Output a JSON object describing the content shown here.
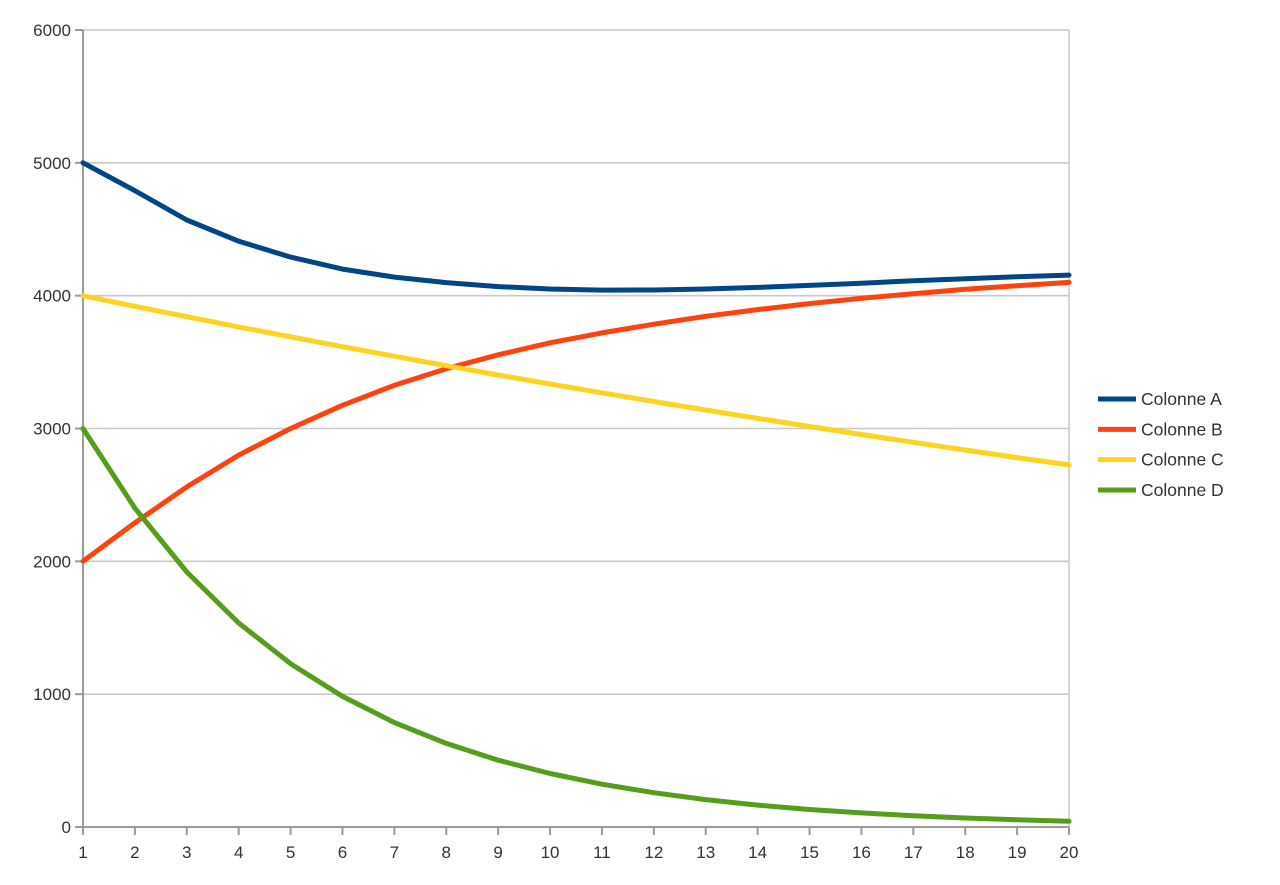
{
  "page": {
    "background": "#FFFFFF"
  },
  "colors": {
    "grid": "#C9C9C9",
    "axis": "#9B9B9B",
    "tick": "#9B9B9B",
    "label_text": "#333333",
    "legend_text": "#333333"
  },
  "chart_data": {
    "type": "line",
    "title": "",
    "xlabel": "",
    "ylabel": "",
    "grid": true,
    "legend_position": "right",
    "xlim": [
      1,
      20
    ],
    "ylim": [
      0,
      6000
    ],
    "x": [
      1,
      2,
      3,
      4,
      5,
      6,
      7,
      8,
      9,
      10,
      11,
      12,
      13,
      14,
      15,
      16,
      17,
      18,
      19,
      20
    ],
    "x_tick_labels": [
      "1",
      "2",
      "3",
      "4",
      "5",
      "6",
      "7",
      "8",
      "9",
      "10",
      "11",
      "12",
      "13",
      "14",
      "15",
      "16",
      "17",
      "18",
      "19",
      "20"
    ],
    "y_ticks": [
      0,
      1000,
      2000,
      3000,
      4000,
      5000,
      6000
    ],
    "y_tick_labels": [
      "0",
      "1000",
      "2000",
      "3000",
      "4000",
      "5000",
      "6000"
    ],
    "legend_entries": [
      "Colonne A",
      "Colonne B",
      "Colonne C",
      "Colonne D"
    ],
    "series": [
      {
        "name": "Colonne A",
        "color": "#004586",
        "values": [
          5000,
          4790,
          4570,
          4410,
          4290,
          4200,
          4140,
          4098,
          4068,
          4050,
          4042,
          4043,
          4050,
          4062,
          4077,
          4094,
          4112,
          4128,
          4142,
          4155
        ]
      },
      {
        "name": "Colonne B",
        "color": "#FF420E",
        "values": [
          2000,
          2290,
          2560,
          2800,
          3000,
          3175,
          3325,
          3450,
          3555,
          3645,
          3720,
          3785,
          3845,
          3895,
          3940,
          3980,
          4015,
          4048,
          4075,
          4100
        ]
      },
      {
        "name": "Colonne C",
        "color": "#FFD320",
        "values": [
          4000,
          3920,
          3842,
          3765,
          3690,
          3616,
          3544,
          3473,
          3403,
          3335,
          3269,
          3203,
          3139,
          3077,
          3015,
          2955,
          2896,
          2838,
          2781,
          2726
        ]
      },
      {
        "name": "Colonne D",
        "color": "#579D1C",
        "values": [
          3000,
          2400,
          1920,
          1536,
          1229,
          983,
          786,
          629,
          503,
          403,
          322,
          258,
          206,
          165,
          132,
          106,
          85,
          68,
          54,
          43
        ]
      }
    ]
  }
}
